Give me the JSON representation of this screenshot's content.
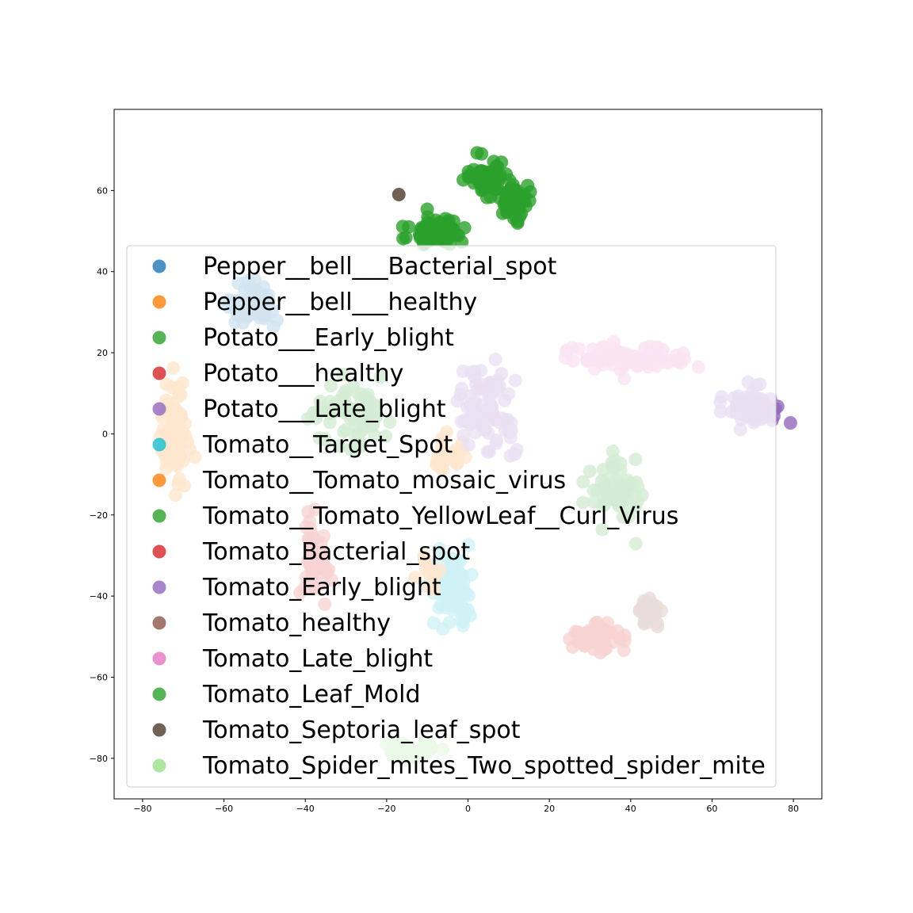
{
  "chart_data": {
    "type": "scatter",
    "title": "",
    "xlabel": "",
    "ylabel": "",
    "xlim": [
      -87,
      87
    ],
    "ylim": [
      -90,
      80
    ],
    "xticks": [
      -80,
      -60,
      -40,
      -20,
      0,
      20,
      40,
      60,
      80
    ],
    "yticks": [
      -80,
      -60,
      -40,
      -20,
      0,
      20,
      40,
      60
    ],
    "xtick_labels": [
      "−80",
      "−60",
      "−40",
      "−20",
      "0",
      "20",
      "40",
      "60",
      "80"
    ],
    "ytick_labels": [
      "−80",
      "−60",
      "−40",
      "−20",
      "0",
      "20",
      "40",
      "60"
    ],
    "grid": false,
    "legend_placement": "lower-center",
    "series": [
      {
        "name": "Pepper__bell___Bacterial_spot",
        "color": "#1f77b4",
        "clusters": [
          {
            "cx": -53,
            "cy": 32,
            "sx": 5,
            "sy": 4,
            "n": 70
          }
        ]
      },
      {
        "name": "Pepper__bell___healthy",
        "color": "#ff7f0e",
        "clusters": [
          {
            "cx": -72,
            "cy": 0,
            "sx": 3,
            "sy": 10,
            "n": 80
          },
          {
            "cx": -5,
            "cy": -5,
            "sx": 4,
            "sy": 4,
            "n": 25
          }
        ]
      },
      {
        "name": "Potato___Early_blight",
        "color": "#2ca02c",
        "clusters": [
          {
            "cx": -30,
            "cy": 4,
            "sx": 9,
            "sy": 7,
            "n": 80
          }
        ]
      },
      {
        "name": "Potato___healthy",
        "color": "#d62728",
        "clusters": [
          {
            "cx": -38,
            "cy": -30,
            "sx": 3,
            "sy": 8,
            "n": 45
          }
        ]
      },
      {
        "name": "Potato___Late_blight",
        "color": "#9467bd",
        "clusters": [
          {
            "cx": 5,
            "cy": 7,
            "sx": 6,
            "sy": 9,
            "n": 80
          }
        ]
      },
      {
        "name": "Tomato__Target_Spot",
        "color": "#17becf",
        "clusters": [
          {
            "cx": -4,
            "cy": -38,
            "sx": 5,
            "sy": 7,
            "n": 90
          }
        ]
      },
      {
        "name": "Tomato__Tomato_mosaic_virus",
        "color": "#ff7f0e",
        "clusters": [
          {
            "cx": -10,
            "cy": -34,
            "sx": 3,
            "sy": 3,
            "n": 10
          }
        ]
      },
      {
        "name": "Tomato__Tomato_YellowLeaf__Curl_Virus",
        "color": "#2ca02c",
        "clusters": [
          {
            "cx": 36,
            "cy": -14,
            "sx": 6,
            "sy": 7,
            "n": 60
          }
        ]
      },
      {
        "name": "Tomato_Bacterial_spot",
        "color": "#d62728",
        "clusters": [
          {
            "cx": 33,
            "cy": -50,
            "sx": 5,
            "sy": 3,
            "n": 50
          }
        ]
      },
      {
        "name": "Tomato_Early_blight",
        "color": "#9467bd",
        "clusters": [
          {
            "cx": 70,
            "cy": 6,
            "sx": 5,
            "sy": 4,
            "n": 70
          }
        ]
      },
      {
        "name": "Tomato_healthy",
        "color": "#8c564b",
        "clusters": [
          {
            "cx": 44,
            "cy": -44,
            "sx": 3,
            "sy": 4,
            "n": 30
          }
        ]
      },
      {
        "name": "Tomato_Late_blight",
        "color": "#e377c2",
        "clusters": [
          {
            "cx": 40,
            "cy": 19,
            "sx": 12,
            "sy": 3,
            "n": 80
          }
        ]
      },
      {
        "name": "Tomato_Leaf_Mold",
        "color": "#2ca02c",
        "clusters": [
          {
            "cx": -8,
            "cy": 50,
            "sx": 6,
            "sy": 3,
            "n": 80
          },
          {
            "cx": 5,
            "cy": 63,
            "sx": 4,
            "sy": 4,
            "n": 50
          },
          {
            "cx": 12,
            "cy": 57,
            "sx": 4,
            "sy": 4,
            "n": 50
          }
        ]
      },
      {
        "name": "Tomato_Septoria_leaf_spot",
        "color": "#4b3a2a",
        "clusters": [
          {
            "cx": -17,
            "cy": 59,
            "sx": 0,
            "sy": 0,
            "n": 1
          }
        ]
      },
      {
        "name": "Tomato_Spider_mites_Two_spotted_spider_mite",
        "color": "#98df8a",
        "clusters": [
          {
            "cx": -14,
            "cy": -78,
            "sx": 6,
            "sy": 2,
            "n": 40
          }
        ]
      }
    ]
  }
}
